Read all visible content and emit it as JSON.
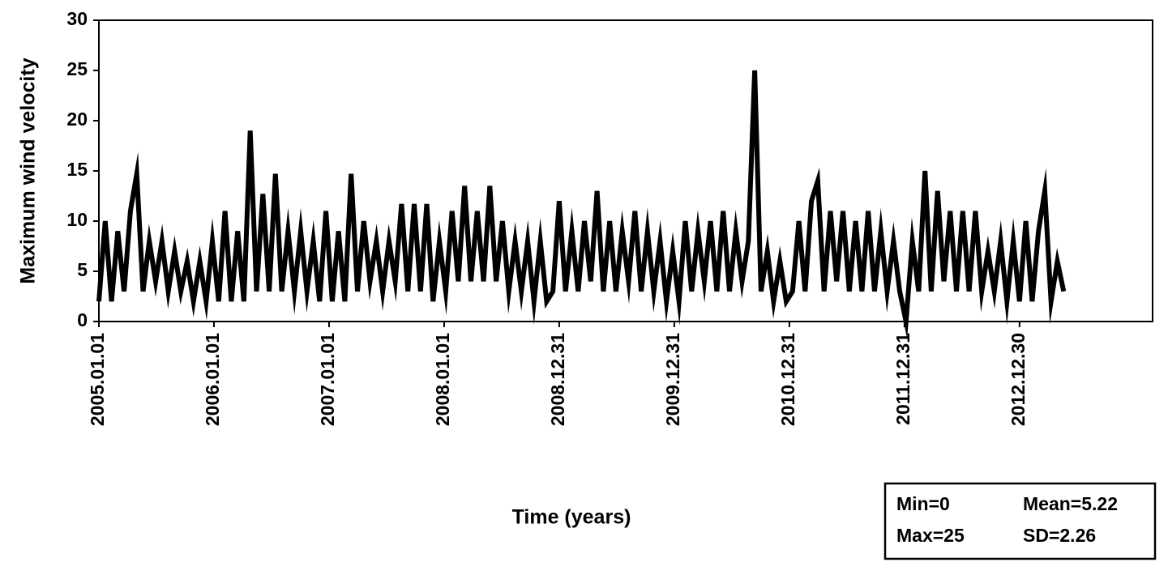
{
  "chart_data": {
    "type": "line",
    "xlabel": "Time (years)",
    "ylabel": "Maximum wind velocity",
    "color": "#000000",
    "xlim": [
      0,
      3342
    ],
    "ylim": [
      0,
      30
    ],
    "yticks": [
      0,
      5,
      10,
      15,
      20,
      25,
      30
    ],
    "xticks": [
      {
        "value": 0,
        "label": "2005.01.01"
      },
      {
        "value": 365,
        "label": "2006.01.01"
      },
      {
        "value": 730,
        "label": "2007.01.01"
      },
      {
        "value": 1095,
        "label": "2008.01.01"
      },
      {
        "value": 1460,
        "label": "2008.12.31"
      },
      {
        "value": 1825,
        "label": "2009.12.31"
      },
      {
        "value": 2190,
        "label": "2010.12.31"
      },
      {
        "value": 2555,
        "label": "2011.12.31"
      },
      {
        "value": 2920,
        "label": "2012.12.30"
      }
    ],
    "x": [
      0,
      20,
      40,
      60,
      80,
      100,
      120,
      140,
      160,
      180,
      200,
      220,
      240,
      260,
      280,
      300,
      320,
      340,
      360,
      380,
      400,
      420,
      440,
      460,
      480,
      500,
      520,
      540,
      560,
      580,
      600,
      620,
      640,
      660,
      680,
      700,
      720,
      740,
      760,
      780,
      800,
      820,
      840,
      860,
      880,
      900,
      920,
      940,
      960,
      980,
      1000,
      1020,
      1040,
      1060,
      1080,
      1100,
      1120,
      1140,
      1160,
      1180,
      1200,
      1220,
      1240,
      1260,
      1280,
      1300,
      1320,
      1340,
      1360,
      1380,
      1400,
      1420,
      1440,
      1460,
      1480,
      1500,
      1520,
      1540,
      1560,
      1580,
      1600,
      1620,
      1640,
      1660,
      1680,
      1700,
      1720,
      1740,
      1760,
      1780,
      1800,
      1820,
      1840,
      1860,
      1880,
      1900,
      1920,
      1940,
      1960,
      1980,
      2000,
      2020,
      2040,
      2060,
      2080,
      2100,
      2120,
      2140,
      2160,
      2180,
      2200,
      2220,
      2240,
      2260,
      2280,
      2300,
      2320,
      2340,
      2360,
      2380,
      2400,
      2420,
      2440,
      2460,
      2480,
      2500,
      2520,
      2540,
      2560,
      2580,
      2600,
      2620,
      2640,
      2660,
      2680,
      2700,
      2720,
      2740,
      2760,
      2780,
      2800,
      2820,
      2840,
      2860,
      2880,
      2900,
      2920,
      2940,
      2960,
      2980,
      3000,
      3020,
      3040,
      3060
    ],
    "values": [
      2,
      10,
      2,
      9,
      3,
      11,
      14.7,
      3,
      8,
      4,
      8,
      3,
      7,
      3,
      6,
      2,
      6,
      2,
      8,
      2,
      11,
      2,
      9,
      2,
      19,
      3,
      12.7,
      3,
      14.7,
      3,
      9,
      3,
      9,
      3,
      8,
      2,
      11,
      2,
      9,
      2,
      14.7,
      3,
      10,
      4,
      8,
      3,
      8,
      4,
      11.7,
      3,
      11.7,
      3,
      11.7,
      2,
      8,
      3,
      11,
      4,
      13.5,
      4,
      11,
      4,
      13.5,
      4,
      10,
      3,
      8,
      3,
      8,
      2,
      8,
      2,
      3,
      12,
      3,
      9,
      3,
      10,
      4,
      13,
      3,
      10,
      3,
      9,
      4,
      11,
      3,
      9,
      3,
      8,
      2,
      7,
      2,
      10,
      3,
      9,
      4,
      10,
      3,
      11,
      3,
      9,
      4,
      8,
      25,
      3,
      7,
      2,
      6,
      2,
      3,
      10,
      3,
      12,
      14,
      3,
      11,
      4,
      11,
      3,
      10,
      3,
      11,
      3,
      9,
      3,
      8,
      3,
      0,
      8,
      3,
      15,
      3,
      13,
      4,
      11,
      3,
      11,
      3,
      11,
      3,
      7,
      3,
      8,
      2,
      8,
      2,
      10,
      2,
      9,
      13,
      2,
      6,
      3
    ],
    "annotations": [
      "Min=0",
      "Mean=5.22",
      "Max=25",
      "SD=2.26"
    ]
  }
}
